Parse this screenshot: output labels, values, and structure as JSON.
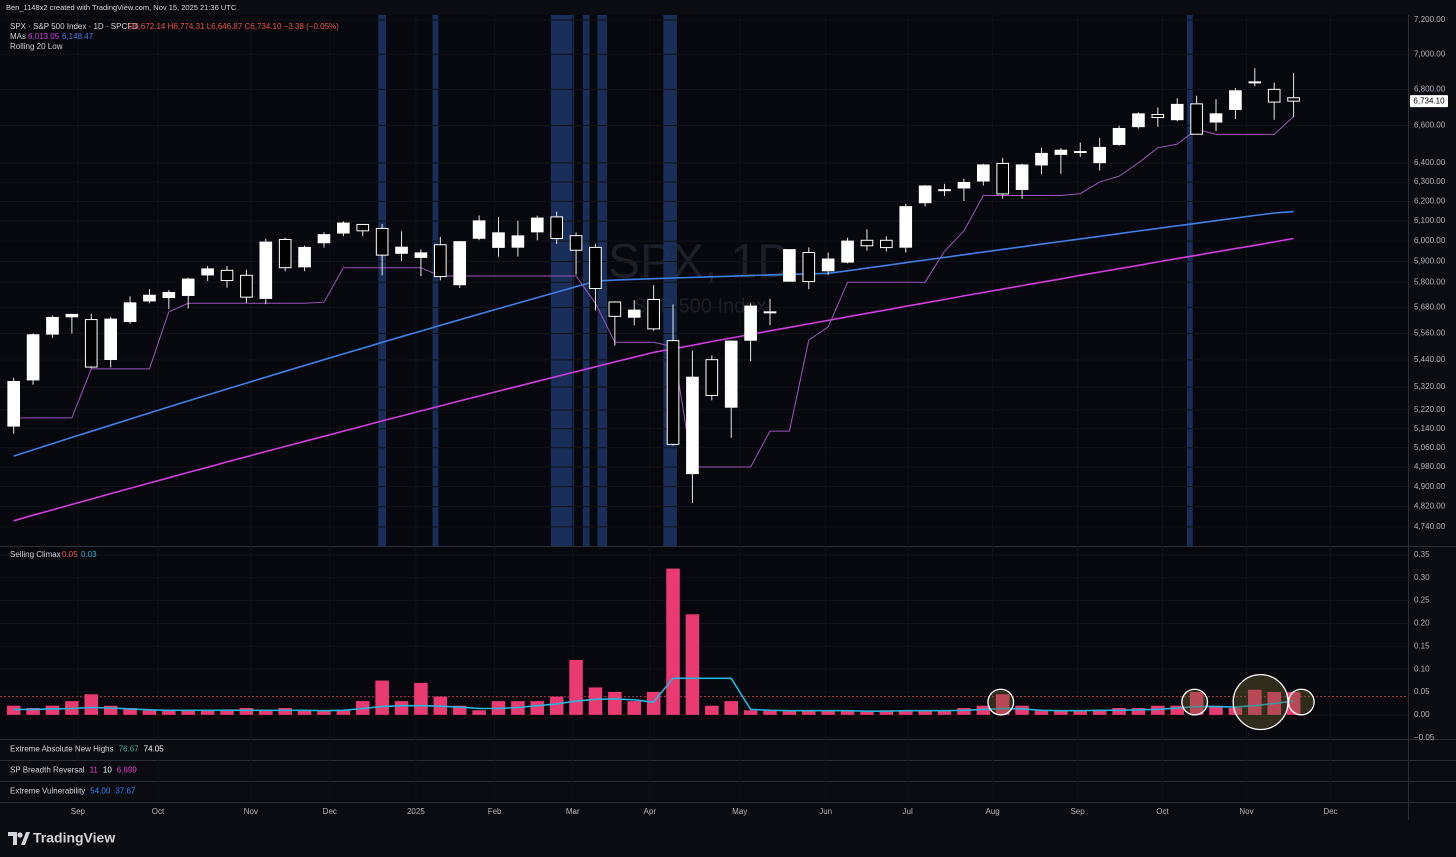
{
  "header": {
    "credit": "Ben_1148x2 created with TradingView.com, Nov 15, 2025 21:36 UTC",
    "symbol": "SPX · S&P 500 Index · 1D · SPCFD",
    "ohlc": "O6,672.14 H6,774.31 L6,646.87 C6,734.10 −3.38 (−0.05%)",
    "mas_label": "MAs",
    "ma_values": [
      "6,013.05",
      "6,148.47"
    ],
    "rolling_label": "Rolling 20 Low",
    "watermark": "SPX, 1D",
    "watermark_sub": "S&P 500 Index",
    "price_label": "6,734.10"
  },
  "chart_data": [
    {
      "type": "candlestick",
      "log_scale": true,
      "categories": [
        null,
        null,
        null,
        null,
        null,
        null,
        null,
        null,
        null,
        null,
        null,
        null,
        null,
        null,
        null,
        null,
        null,
        null,
        null,
        null,
        null,
        null,
        null,
        null,
        null,
        null,
        null,
        null,
        null,
        null,
        null,
        null,
        null,
        null,
        null,
        null,
        null,
        null,
        null,
        null,
        null,
        null,
        null,
        null,
        null,
        null,
        null,
        null,
        null,
        null,
        null,
        null,
        null,
        null,
        null,
        null,
        null,
        null,
        null,
        null,
        null,
        null,
        null,
        null,
        null,
        null,
        null
      ],
      "open": [
        5151,
        5351,
        5557,
        5637,
        5624,
        5442,
        5615,
        5711,
        5727,
        5737,
        5835,
        5857,
        5833,
        5723,
        6008,
        5874,
        5992,
        6040,
        6083,
        6063,
        5940,
        5920,
        5982,
        5788,
        6014,
        5969,
        5970,
        6046,
        6121,
        6027,
        5969,
        5706,
        5635,
        5718,
        5527,
        4953,
        5441,
        5232,
        5529,
        5656,
        5805,
        5944,
        5855,
        5897,
        6004,
        6004,
        5970,
        6193,
        6259,
        6269,
        6305,
        6397,
        6261,
        6389,
        6445,
        6457,
        6401,
        6498,
        6594,
        6660,
        6632,
        6719,
        6619,
        6688,
        6842,
        6800,
        6753
      ],
      "high": [
        5360,
        5560,
        5643,
        5651,
        5651,
        5636,
        5733,
        5767,
        5763,
        5822,
        5878,
        5878,
        5860,
        6012,
        6017,
        5978,
        6044,
        6099,
        6085,
        6085,
        6049,
        5960,
        6021,
        6000,
        6128,
        6120,
        6101,
        6127,
        6147,
        6043,
        5987,
        5710,
        5715,
        5786,
        5695,
        5481,
        5460,
        5528,
        5700,
        5721,
        5959,
        5969,
        5944,
        6017,
        6059,
        6024,
        6187,
        6284,
        6290,
        6316,
        6395,
        6427,
        6395,
        6481,
        6478,
        6508,
        6532,
        6600,
        6672,
        6699,
        6750,
        6764,
        6745,
        6807,
        6920,
        6838,
        6891
      ],
      "low": [
        5119,
        5330,
        5540,
        5560,
        5402,
        5406,
        5604,
        5700,
        5674,
        5676,
        5806,
        5774,
        5702,
        5696,
        5853,
        5853,
        5968,
        6024,
        6024,
        5833,
        5902,
        5829,
        5809,
        5773,
        6005,
        5923,
        5924,
        6004,
        5986,
        5837,
        5666,
        5505,
        5597,
        5572,
        5069,
        4835,
        5262,
        5102,
        5434,
        5598,
        5803,
        5767,
        5834,
        5891,
        5953,
        5949,
        5944,
        6174,
        6228,
        6202,
        6281,
        6213,
        6212,
        6340,
        6343,
        6432,
        6360,
        6491,
        6583,
        6593,
        6623,
        6551,
        6570,
        6636,
        6817,
        6631,
        6646
      ],
      "close": [
        5344,
        5554,
        5634,
        5648,
        5408,
        5626,
        5702,
        5738,
        5751,
        5815,
        5864,
        5808,
        5729,
        5995,
        5870,
        5969,
        6032,
        6090,
        6051,
        5931,
        5970,
        5942,
        5827,
        5997,
        6101,
        6041,
        6026,
        6115,
        6013,
        5955,
        5770,
        5639,
        5668,
        5581,
        5074,
        5363,
        5283,
        5525,
        5687,
        5660,
        5958,
        5803,
        5912,
        6000,
        5977,
        5968,
        6173,
        6279,
        6260,
        6297,
        6389,
        6238,
        6389,
        6450,
        6467,
        6460,
        6482,
        6584,
        6664,
        6644,
        6716,
        6553,
        6664,
        6792,
        6840,
        6729,
        6734.1
      ],
      "lines": [
        {
          "color": "#3f7fe8",
          "values": [
            5025,
            5051,
            5077,
            5103,
            5129,
            5155,
            5181,
            5207,
            5233,
            5259,
            5285,
            5311,
            5337,
            5363,
            5389,
            5415,
            5441,
            5467,
            5493,
            5519,
            5545,
            5571,
            5597,
            5623,
            5649,
            5675,
            5701,
            5727,
            5753,
            5779,
            5805,
            5810,
            5814,
            5817,
            5820,
            5823,
            5826,
            5829,
            5832,
            5835,
            5838,
            5840,
            5843,
            5855,
            5868,
            5881,
            5894,
            5907,
            5920,
            5933,
            5946,
            5959,
            5972,
            5985,
            5998,
            6011,
            6024,
            6037,
            6050,
            6063,
            6076,
            6089,
            6102,
            6115,
            6128,
            6140,
            6148
          ]
        },
        {
          "color": "#d43be0",
          "values": [
            4764,
            4786,
            4807,
            4829,
            4850,
            4872,
            4893,
            4915,
            4936,
            4958,
            4979,
            5001,
            5022,
            5044,
            5065,
            5087,
            5108,
            5130,
            5151,
            5173,
            5194,
            5216,
            5237,
            5259,
            5280,
            5302,
            5323,
            5345,
            5366,
            5388,
            5409,
            5431,
            5452,
            5474,
            5490,
            5506,
            5523,
            5539,
            5555,
            5572,
            5588,
            5604,
            5620,
            5637,
            5653,
            5669,
            5686,
            5702,
            5718,
            5735,
            5751,
            5767,
            5784,
            5800,
            5816,
            5833,
            5849,
            5865,
            5881,
            5898,
            5914,
            5930,
            5947,
            5963,
            5979,
            5996,
            6013
          ]
        },
        {
          "color": "#9c55b8",
          "values": [
            5186,
            5186,
            5186,
            5186,
            5400,
            5400,
            5400,
            5400,
            5660,
            5700,
            5700,
            5700,
            5700,
            5700,
            5700,
            5700,
            5705,
            5870,
            5870,
            5870,
            5870,
            5870,
            5830,
            5830,
            5830,
            5830,
            5830,
            5830,
            5830,
            5830,
            5700,
            5520,
            5520,
            5520,
            5500,
            4980,
            4980,
            4980,
            4980,
            5130,
            5130,
            5530,
            5590,
            5800,
            5800,
            5800,
            5800,
            5800,
            5950,
            6050,
            6230,
            6230,
            6230,
            6230,
            6230,
            6240,
            6300,
            6330,
            6400,
            6480,
            6500,
            6580,
            6552,
            6552,
            6552,
            6552,
            6650
          ]
        }
      ],
      "highlights": [
        [
          18.8,
          19.2
        ],
        [
          21.6,
          21.9
        ],
        [
          27.7,
          28.9
        ],
        [
          29.35,
          29.7
        ],
        [
          30.1,
          30.6
        ],
        [
          33.5,
          34.2
        ],
        [
          60.5,
          60.8
        ]
      ],
      "xlim": [
        -0.5,
        71.9
      ],
      "ylim": [
        4666,
        7230
      ],
      "yticks": [
        {
          "value": 7200,
          "label": "7,200.00"
        },
        {
          "value": 7000,
          "label": "7,000.00"
        },
        {
          "value": 6800,
          "label": "6,800.00"
        },
        {
          "value": 6600,
          "label": "6,600.00"
        },
        {
          "value": 6400,
          "label": "6,400.00"
        },
        {
          "value": 6300,
          "label": "6,300.00"
        },
        {
          "value": 6200,
          "label": "6,200.00"
        },
        {
          "value": 6100,
          "label": "6,100.00"
        },
        {
          "value": 6000,
          "label": "6,000.00"
        },
        {
          "value": 5900,
          "label": "5,900.00"
        },
        {
          "value": 5800,
          "label": "5,800.00"
        },
        {
          "value": 5680,
          "label": "5,680.00"
        },
        {
          "value": 5560,
          "label": "5,560.00"
        },
        {
          "value": 5440,
          "label": "5,440.00"
        },
        {
          "value": 5320,
          "label": "5,320.00"
        },
        {
          "value": 5220,
          "label": "5,220.00"
        },
        {
          "value": 5140,
          "label": "5,140.00"
        },
        {
          "value": 5060,
          "label": "5,060.00"
        },
        {
          "value": 4980,
          "label": "4,980.00"
        },
        {
          "value": 4900,
          "label": "4,900.00"
        },
        {
          "value": 4820,
          "label": "4,820.00"
        },
        {
          "value": 4740,
          "label": "4,740.00"
        }
      ],
      "xticks": [
        {
          "value": 3.31,
          "label": "Sep"
        },
        {
          "value": 7.44,
          "label": "Oct"
        },
        {
          "value": 12.23,
          "label": "Nov"
        },
        {
          "value": 16.3,
          "label": "Dec"
        },
        {
          "value": 20.74,
          "label": "2025"
        },
        {
          "value": 24.8,
          "label": "Feb"
        },
        {
          "value": 28.83,
          "label": "Mar"
        },
        {
          "value": 32.8,
          "label": "Apr"
        },
        {
          "value": 37.44,
          "label": "May"
        },
        {
          "value": 41.87,
          "label": "Jun"
        },
        {
          "value": 46.1,
          "label": "Jul"
        },
        {
          "value": 50.48,
          "label": "Aug"
        },
        {
          "value": 54.86,
          "label": "Sep"
        },
        {
          "value": 59.24,
          "label": "Oct"
        },
        {
          "value": 63.57,
          "label": "Nov"
        },
        {
          "value": 67.9,
          "label": "Dec"
        }
      ]
    },
    {
      "type": "bar",
      "title": "Selling Climax",
      "legend_values": [
        "0.05",
        "0.03"
      ],
      "color": "#ea3a72",
      "values": [
        0.02,
        0.015,
        0.02,
        0.03,
        0.045,
        0.02,
        0.015,
        0.01,
        0.01,
        0.01,
        0.01,
        0.012,
        0.015,
        0.01,
        0.015,
        0.01,
        0.008,
        0.01,
        0.03,
        0.075,
        0.03,
        0.07,
        0.04,
        0.02,
        0.01,
        0.03,
        0.03,
        0.03,
        0.04,
        0.12,
        0.06,
        0.05,
        0.03,
        0.05,
        0.32,
        0.22,
        0.02,
        0.03,
        0.01,
        0.01,
        0.008,
        0.008,
        0.008,
        0.008,
        0.008,
        0.01,
        0.01,
        0.01,
        0.01,
        0.015,
        0.02,
        0.045,
        0.02,
        0.01,
        0.01,
        0.01,
        0.01,
        0.015,
        0.015,
        0.02,
        0.02,
        0.05,
        0.02,
        0.015,
        0.055,
        0.05,
        0.05
      ],
      "average": {
        "color": "#26b6d9",
        "values": [
          0.012,
          0.012,
          0.013,
          0.014,
          0.016,
          0.015,
          0.013,
          0.011,
          0.01,
          0.01,
          0.01,
          0.01,
          0.01,
          0.01,
          0.01,
          0.01,
          0.009,
          0.01,
          0.014,
          0.018,
          0.02,
          0.02,
          0.019,
          0.017,
          0.014,
          0.014,
          0.016,
          0.02,
          0.024,
          0.03,
          0.034,
          0.035,
          0.033,
          0.028,
          0.08,
          0.08,
          0.08,
          0.08,
          0.012,
          0.01,
          0.009,
          0.009,
          0.009,
          0.009,
          0.008,
          0.008,
          0.009,
          0.009,
          0.009,
          0.01,
          0.012,
          0.014,
          0.013,
          0.01,
          0.009,
          0.009,
          0.01,
          0.01,
          0.011,
          0.012,
          0.015,
          0.018,
          0.018,
          0.017,
          0.02,
          0.025,
          0.03
        ]
      },
      "threshold": 0.04,
      "circles": [
        {
          "x": 50.9,
          "y": 0.028,
          "r": 0.028
        },
        {
          "x": 60.9,
          "y": 0.028,
          "r": 0.028
        },
        {
          "x": 64.3,
          "y": 0.028,
          "r": 0.06
        },
        {
          "x": 66.4,
          "y": 0.028,
          "r": 0.028
        }
      ],
      "ylim": [
        -0.055,
        0.365
      ],
      "yticks": [
        {
          "value": 0.35,
          "label": "0.35"
        },
        {
          "value": 0.3,
          "label": "0.30"
        },
        {
          "value": 0.25,
          "label": "0.25"
        },
        {
          "value": 0.2,
          "label": "0.20"
        },
        {
          "value": 0.15,
          "label": "0.15"
        },
        {
          "value": 0.1,
          "label": "0.10"
        },
        {
          "value": 0.05,
          "label": "0.05"
        },
        {
          "value": 0,
          "label": "0.00"
        },
        {
          "value": -0.05,
          "label": "−0.05"
        }
      ]
    }
  ],
  "indicators": [
    {
      "name": "Extreme Absolute New Highs",
      "values": [
        "76.67",
        "74.05"
      ],
      "colors": [
        "#4fa89a",
        "#ffffff"
      ]
    },
    {
      "name": "SP Breadth Reversal",
      "values": [
        "11",
        "10",
        "6,699"
      ],
      "colors": [
        "#e040c0",
        "#ffffff",
        "#e040c0"
      ]
    },
    {
      "name": "Extreme Vulnerability",
      "values": [
        "54.00",
        "37.67"
      ],
      "colors": [
        "#3b82f0",
        "#3b82f0"
      ]
    }
  ],
  "footer": {
    "brand": "TradingView"
  }
}
